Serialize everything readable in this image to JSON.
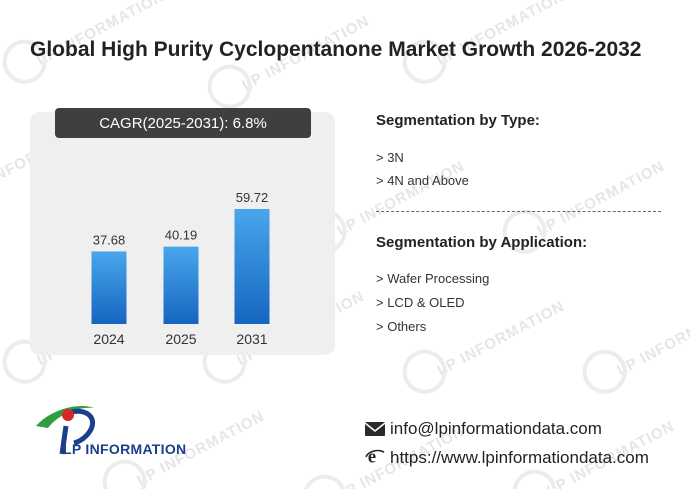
{
  "title": "Global High Purity Cyclopentanone Market Growth 2026-2032",
  "cagr": {
    "label": "CAGR(2025-2031):",
    "value": "6.8%"
  },
  "chart_data": {
    "type": "bar",
    "categories": [
      "2024",
      "2025",
      "2031"
    ],
    "values": [
      37.68,
      40.19,
      59.72
    ],
    "value_labels": [
      "37.68",
      "40.19",
      "59.72"
    ],
    "ylim": [
      0,
      65
    ],
    "grid": false,
    "colors": {
      "bar_top": "#4aa6ec",
      "bar_bottom": "#1565c0",
      "panel": "#efefef"
    }
  },
  "segmentation_type": {
    "heading": "Segmentation by Type:",
    "items": [
      "> 3N",
      "> 4N and Above"
    ]
  },
  "segmentation_application": {
    "heading": "Segmentation by Application:",
    "items": [
      "> Wafer Processing",
      "> LCD & OLED",
      "> Others"
    ]
  },
  "brand": {
    "name": "LP INFORMATION",
    "watermark": "LP INFORMATION",
    "colors": {
      "blue": "#1b3f8a",
      "green": "#2e9e3e",
      "red": "#d62828"
    }
  },
  "contact": {
    "email": "info@lpinformationdata.com",
    "website": "https://www.lpinformationdata.com",
    "email_icon": "mail-icon",
    "website_icon": "browser-e-icon"
  }
}
